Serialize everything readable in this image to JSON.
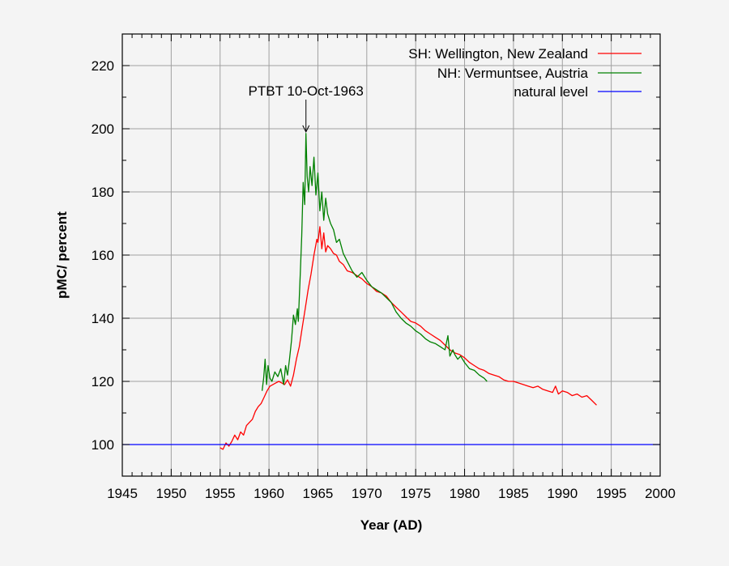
{
  "chart_data": {
    "type": "line",
    "title": "",
    "xlabel": "Year (AD)",
    "ylabel": "pMC/ percent",
    "xlim": [
      1945,
      2000
    ],
    "ylim": [
      90,
      230
    ],
    "grid": true,
    "legend_position": "top-right",
    "x_ticks": [
      1945,
      1950,
      1955,
      1960,
      1965,
      1970,
      1975,
      1980,
      1985,
      1990,
      1995,
      2000
    ],
    "x_tick_labels": [
      "1945",
      "1950",
      "1955",
      "1960",
      "1965",
      "1970",
      "1975",
      "1980",
      "1985",
      "1990",
      "1995",
      "2000"
    ],
    "y_ticks": [
      100,
      120,
      140,
      160,
      180,
      200,
      220
    ],
    "y_tick_labels": [
      "100",
      "120",
      "140",
      "160",
      "180",
      "200",
      "220"
    ],
    "annotation": {
      "text": "PTBT 10-Oct-1963",
      "x": 1963.78,
      "y_from": 210,
      "y_to": 199
    },
    "series": [
      {
        "name": "SH: Wellington, New Zealand",
        "color": "#ff0000",
        "x": [
          1955.0,
          1955.3,
          1955.6,
          1955.9,
          1956.2,
          1956.5,
          1956.8,
          1957.1,
          1957.4,
          1957.7,
          1958.0,
          1958.3,
          1958.6,
          1958.9,
          1959.2,
          1959.5,
          1959.8,
          1960.1,
          1960.4,
          1960.7,
          1961.0,
          1961.3,
          1961.6,
          1961.9,
          1962.2,
          1962.5,
          1962.8,
          1963.1,
          1963.4,
          1963.7,
          1964.0,
          1964.3,
          1964.6,
          1964.9,
          1965.0,
          1965.2,
          1965.4,
          1965.6,
          1965.8,
          1966.0,
          1966.3,
          1966.6,
          1966.9,
          1967.2,
          1967.6,
          1968.0,
          1968.5,
          1969.0,
          1969.5,
          1970.0,
          1970.5,
          1971.0,
          1971.5,
          1972.0,
          1972.5,
          1973.0,
          1973.5,
          1974.0,
          1974.5,
          1975.0,
          1975.5,
          1976.0,
          1976.5,
          1977.0,
          1977.5,
          1978.0,
          1978.5,
          1979.0,
          1979.5,
          1980.0,
          1980.5,
          1981.0,
          1981.5,
          1982.0,
          1982.5,
          1983.0,
          1983.5,
          1984.0,
          1984.5,
          1985.0,
          1985.5,
          1986.0,
          1986.5,
          1987.0,
          1987.5,
          1988.0,
          1988.5,
          1989.0,
          1989.3,
          1989.6,
          1990.0,
          1990.5,
          1991.0,
          1991.5,
          1992.0,
          1992.5,
          1993.0,
          1993.5
        ],
        "values": [
          99,
          98.5,
          100.5,
          99.5,
          101,
          103,
          101.5,
          104,
          103,
          106,
          107,
          108,
          110.5,
          112,
          113,
          115,
          117,
          118.5,
          119,
          119.5,
          120,
          119.5,
          119,
          120.5,
          118.5,
          122,
          127,
          131,
          137,
          143,
          149,
          154,
          160,
          165,
          164,
          169,
          162,
          167,
          161,
          163,
          162,
          160.5,
          160,
          158,
          157,
          155,
          154.5,
          153.5,
          152.5,
          151,
          150,
          148.5,
          148,
          147,
          145,
          143.5,
          142,
          140.5,
          139,
          138.5,
          137.5,
          136,
          135,
          134,
          133,
          131.5,
          130,
          129,
          128.5,
          127.5,
          126,
          125,
          124,
          123.5,
          122.5,
          122,
          121.5,
          120.5,
          120,
          120,
          119.5,
          119,
          118.5,
          118,
          118.5,
          117.5,
          117,
          116.5,
          118.5,
          116,
          117,
          116.5,
          115.5,
          116,
          115,
          115.5,
          114,
          112.5
        ]
      },
      {
        "name": "NH: Vermuntsee, Austria",
        "color": "#008000",
        "x": [
          1959.3,
          1959.45,
          1959.6,
          1959.75,
          1959.9,
          1960.1,
          1960.3,
          1960.6,
          1960.9,
          1961.2,
          1961.5,
          1961.7,
          1961.9,
          1962.1,
          1962.3,
          1962.5,
          1962.7,
          1962.9,
          1963.0,
          1963.2,
          1963.35,
          1963.5,
          1963.65,
          1963.78,
          1963.9,
          1964.05,
          1964.2,
          1964.4,
          1964.6,
          1964.8,
          1965.0,
          1965.2,
          1965.4,
          1965.6,
          1965.8,
          1966.0,
          1966.3,
          1966.6,
          1966.9,
          1967.2,
          1967.6,
          1968.0,
          1968.5,
          1969.0,
          1969.5,
          1970.0,
          1970.5,
          1971.0,
          1971.5,
          1972.0,
          1972.5,
          1973.0,
          1973.5,
          1974.0,
          1974.5,
          1975.0,
          1975.5,
          1976.0,
          1976.5,
          1977.0,
          1977.5,
          1978.0,
          1978.3,
          1978.5,
          1978.8,
          1979.0,
          1979.3,
          1979.6,
          1980.0,
          1980.5,
          1981.0,
          1981.5,
          1982.0,
          1982.3
        ],
        "values": [
          117,
          121,
          127,
          119,
          125,
          121,
          120,
          123,
          121.5,
          124,
          119,
          125,
          122,
          127,
          133,
          141,
          138,
          143,
          139,
          154,
          166,
          183,
          176,
          198.5,
          185,
          180,
          188,
          182,
          191,
          179,
          186,
          174,
          180,
          171,
          178,
          173,
          170,
          168,
          164,
          165,
          160.5,
          158,
          155,
          153,
          154.5,
          152,
          150,
          149,
          148,
          146.5,
          145,
          142,
          140,
          138.5,
          137.5,
          136,
          135,
          133.5,
          132.5,
          132,
          131,
          130,
          134.5,
          128,
          130,
          128.5,
          127,
          128,
          126,
          124,
          123.5,
          122,
          121,
          120
        ]
      },
      {
        "name": "natural level",
        "color": "#0000ff",
        "x": [
          1945,
          2000
        ],
        "values": [
          100,
          100
        ]
      }
    ]
  }
}
